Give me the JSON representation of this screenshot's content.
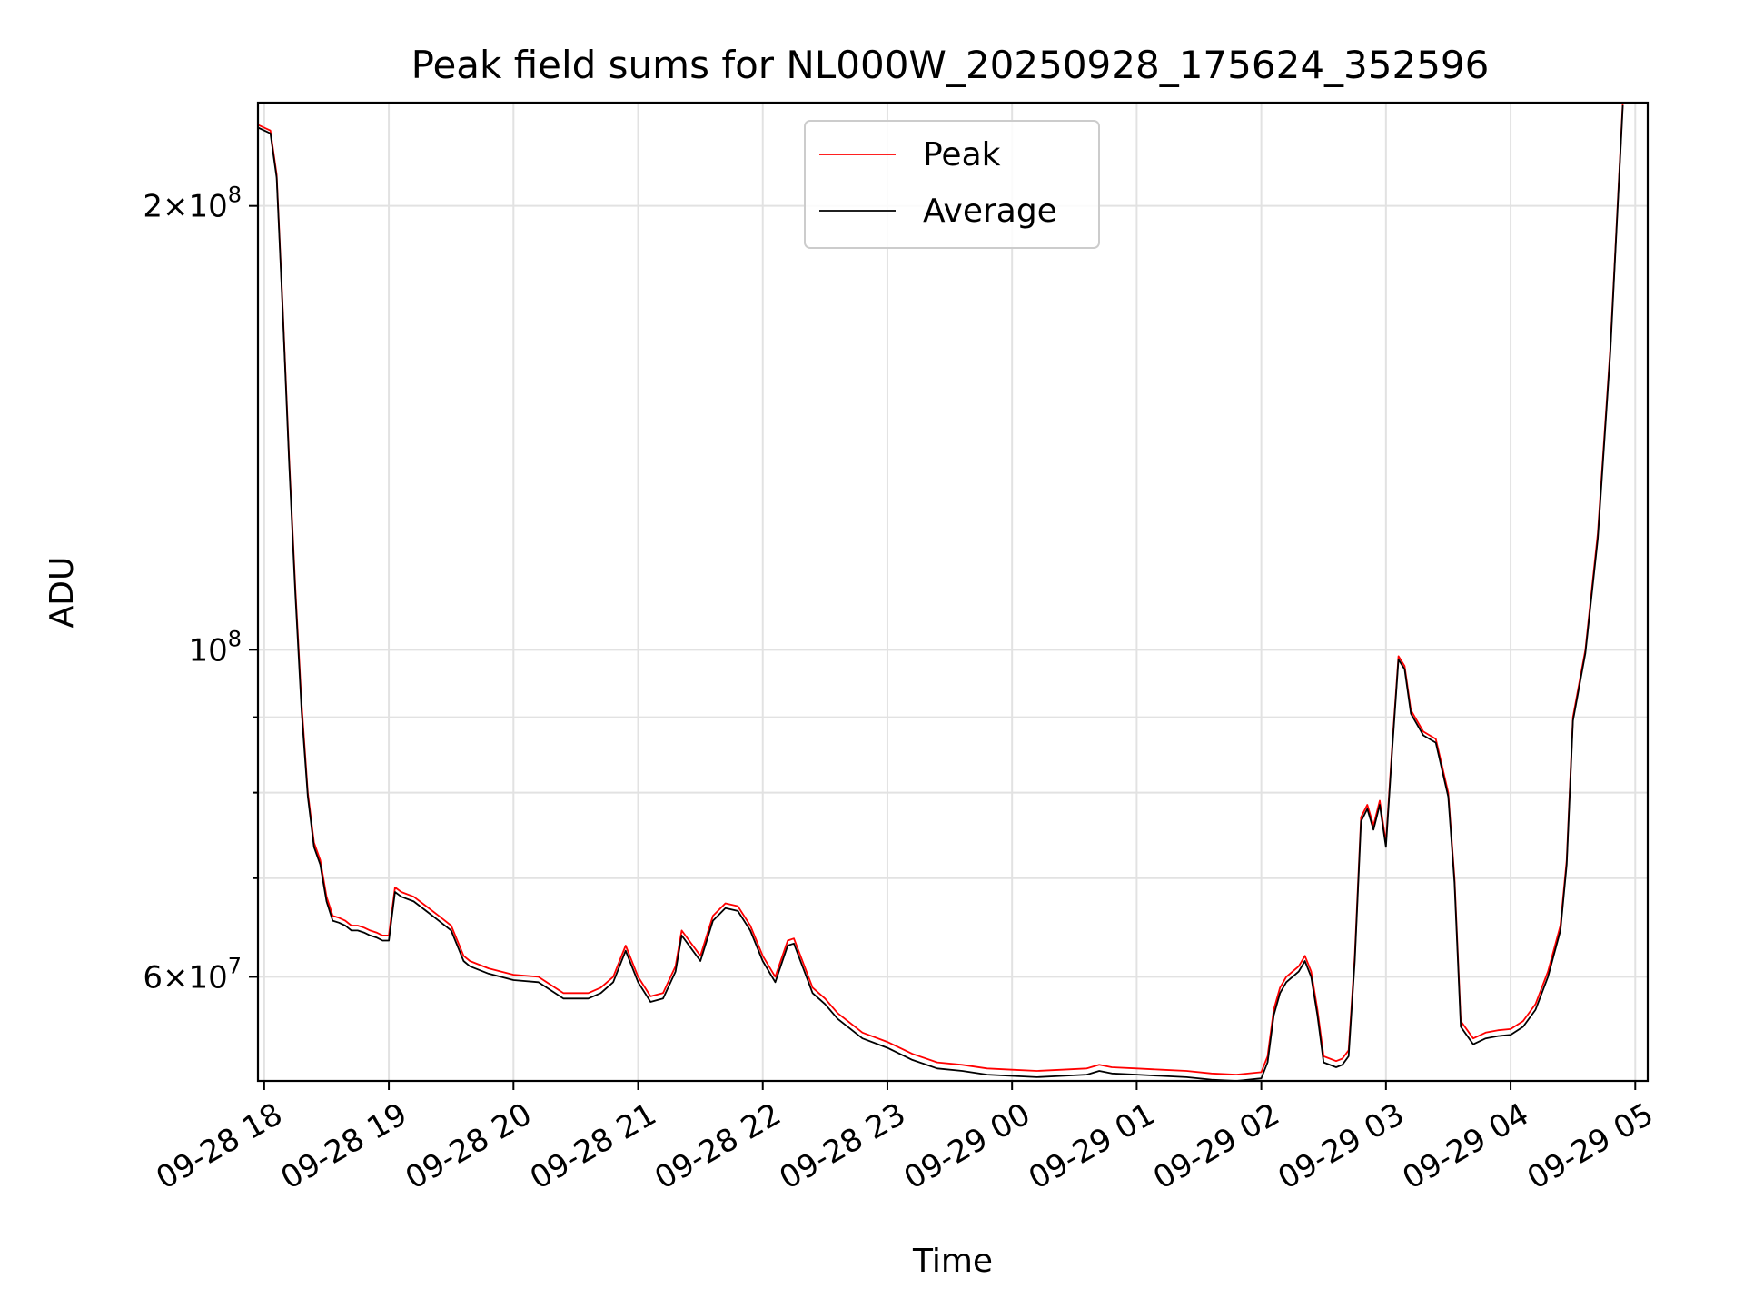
{
  "chart_data": {
    "type": "line",
    "title": "Peak field sums for NL000W_20250928_175624_352596",
    "xlabel": "Time",
    "ylabel": "ADU",
    "x_unit": "hours since 09-28 18:00",
    "xlim": [
      -0.05,
      11.1
    ],
    "ylim": [
      51000000,
      235000000
    ],
    "yscale": "log",
    "grid": true,
    "legend_location": "upper center",
    "x_ticks": [
      {
        "value": 0,
        "label": "09-28 18"
      },
      {
        "value": 1,
        "label": "09-28 19"
      },
      {
        "value": 2,
        "label": "09-28 20"
      },
      {
        "value": 3,
        "label": "09-28 21"
      },
      {
        "value": 4,
        "label": "09-28 22"
      },
      {
        "value": 5,
        "label": "09-28 23"
      },
      {
        "value": 6,
        "label": "09-29 00"
      },
      {
        "value": 7,
        "label": "09-29 01"
      },
      {
        "value": 8,
        "label": "09-29 02"
      },
      {
        "value": 9,
        "label": "09-29 03"
      },
      {
        "value": 10,
        "label": "09-29 04"
      },
      {
        "value": 11,
        "label": "09-29 05"
      }
    ],
    "y_ticks_major": [
      {
        "value": 60000000,
        "mantissa": "6",
        "exponent": "7"
      },
      {
        "value": 100000000,
        "mantissa": "",
        "exponent": "8"
      },
      {
        "value": 200000000,
        "mantissa": "2",
        "exponent": "8"
      }
    ],
    "y_ticks_minor": [
      70000000,
      80000000,
      90000000
    ],
    "tick_times": "×",
    "tick_base": "10",
    "series": [
      {
        "name": "Peak",
        "color": "#ff0000",
        "x": [
          -0.05,
          0.05,
          0.1,
          0.15,
          0.2,
          0.25,
          0.3,
          0.35,
          0.4,
          0.45,
          0.5,
          0.55,
          0.6,
          0.65,
          0.7,
          0.75,
          0.8,
          0.85,
          0.9,
          0.95,
          1.0,
          1.05,
          1.1,
          1.2,
          1.3,
          1.4,
          1.5,
          1.6,
          1.65,
          1.8,
          2.0,
          2.2,
          2.4,
          2.6,
          2.7,
          2.8,
          2.9,
          3.0,
          3.1,
          3.2,
          3.3,
          3.35,
          3.5,
          3.6,
          3.7,
          3.8,
          3.9,
          4.0,
          4.1,
          4.2,
          4.25,
          4.4,
          4.5,
          4.6,
          4.8,
          5.0,
          5.2,
          5.4,
          5.6,
          5.8,
          6.0,
          6.2,
          6.4,
          6.6,
          6.7,
          6.8,
          7.0,
          7.2,
          7.4,
          7.6,
          7.8,
          8.0,
          8.05,
          8.1,
          8.15,
          8.2,
          8.3,
          8.35,
          8.4,
          8.45,
          8.5,
          8.6,
          8.65,
          8.7,
          8.75,
          8.8,
          8.85,
          8.9,
          8.95,
          9.0,
          9.05,
          9.1,
          9.15,
          9.2,
          9.3,
          9.4,
          9.5,
          9.55,
          9.6,
          9.7,
          9.8,
          9.9,
          10.0,
          10.1,
          10.2,
          10.3,
          10.4,
          10.45,
          10.5,
          10.6,
          10.7,
          10.8,
          10.9
        ],
        "values": [
          227000000,
          225000000,
          210000000,
          170000000,
          135000000,
          110000000,
          92000000,
          80000000,
          74000000,
          72000000,
          68000000,
          66000000,
          65800000,
          65500000,
          65000000,
          65000000,
          64800000,
          64500000,
          64300000,
          64000000,
          64000000,
          69000000,
          68500000,
          68000000,
          67000000,
          66000000,
          65000000,
          62000000,
          61500000,
          60800000,
          60200000,
          60000000,
          58500000,
          58500000,
          59000000,
          60000000,
          63000000,
          60000000,
          58200000,
          58500000,
          61000000,
          64500000,
          62000000,
          66000000,
          67300000,
          67000000,
          65000000,
          62000000,
          60000000,
          63500000,
          63700000,
          59000000,
          58000000,
          56700000,
          55000000,
          54200000,
          53200000,
          52500000,
          52300000,
          52000000,
          51900000,
          51800000,
          51900000,
          52000000,
          52300000,
          52100000,
          52000000,
          51900000,
          51800000,
          51600000,
          51500000,
          51700000,
          53000000,
          57000000,
          59000000,
          60000000,
          61000000,
          62000000,
          60500000,
          57000000,
          53000000,
          52600000,
          52800000,
          53500000,
          62000000,
          77000000,
          78500000,
          76000000,
          79000000,
          74000000,
          86000000,
          99000000,
          97500000,
          91000000,
          88000000,
          87000000,
          80000000,
          70000000,
          56000000,
          54500000,
          55000000,
          55200000,
          55300000,
          56000000,
          57500000,
          60500000,
          65000000,
          72000000,
          90000000,
          100000000,
          120000000,
          160000000,
          235000000
        ]
      },
      {
        "name": "Average",
        "color": "#000000",
        "x": [
          -0.05,
          0.05,
          0.1,
          0.15,
          0.2,
          0.25,
          0.3,
          0.35,
          0.4,
          0.45,
          0.5,
          0.55,
          0.6,
          0.65,
          0.7,
          0.75,
          0.8,
          0.85,
          0.9,
          0.95,
          1.0,
          1.05,
          1.1,
          1.2,
          1.3,
          1.4,
          1.5,
          1.6,
          1.65,
          1.8,
          2.0,
          2.2,
          2.4,
          2.6,
          2.7,
          2.8,
          2.9,
          3.0,
          3.1,
          3.2,
          3.3,
          3.35,
          3.5,
          3.6,
          3.7,
          3.8,
          3.9,
          4.0,
          4.1,
          4.2,
          4.25,
          4.4,
          4.5,
          4.6,
          4.8,
          5.0,
          5.2,
          5.4,
          5.6,
          5.8,
          6.0,
          6.2,
          6.4,
          6.6,
          6.7,
          6.8,
          7.0,
          7.2,
          7.4,
          7.6,
          7.8,
          8.0,
          8.05,
          8.1,
          8.15,
          8.2,
          8.3,
          8.35,
          8.4,
          8.45,
          8.5,
          8.6,
          8.65,
          8.7,
          8.75,
          8.8,
          8.85,
          8.9,
          8.95,
          9.0,
          9.05,
          9.1,
          9.15,
          9.2,
          9.3,
          9.4,
          9.5,
          9.55,
          9.6,
          9.7,
          9.8,
          9.9,
          10.0,
          10.1,
          10.2,
          10.3,
          10.4,
          10.45,
          10.5,
          10.6,
          10.7,
          10.8,
          10.9
        ],
        "values": [
          226000000,
          224000000,
          209000000,
          169000000,
          134000000,
          109000000,
          91000000,
          79500000,
          73500000,
          71500000,
          67500000,
          65500000,
          65300000,
          65000000,
          64500000,
          64500000,
          64300000,
          64000000,
          63800000,
          63500000,
          63500000,
          68500000,
          68000000,
          67500000,
          66500000,
          65500000,
          64500000,
          61500000,
          61000000,
          60300000,
          59700000,
          59500000,
          58000000,
          58000000,
          58500000,
          59500000,
          62500000,
          59500000,
          57700000,
          58000000,
          60500000,
          64000000,
          61500000,
          65500000,
          66800000,
          66500000,
          64500000,
          61500000,
          59500000,
          63000000,
          63200000,
          58500000,
          57500000,
          56200000,
          54500000,
          53700000,
          52700000,
          52000000,
          51800000,
          51500000,
          51400000,
          51300000,
          51400000,
          51500000,
          51800000,
          51600000,
          51500000,
          51400000,
          51300000,
          51100000,
          51000000,
          51200000,
          52500000,
          56500000,
          58500000,
          59500000,
          60500000,
          61500000,
          60000000,
          56500000,
          52500000,
          52100000,
          52300000,
          53000000,
          61500000,
          76500000,
          78000000,
          75500000,
          78500000,
          73500000,
          85500000,
          98500000,
          97000000,
          90500000,
          87500000,
          86500000,
          79500000,
          69500000,
          55500000,
          54000000,
          54500000,
          54700000,
          54800000,
          55500000,
          57000000,
          60000000,
          64500000,
          71500000,
          89500000,
          99500000,
          119000000,
          159000000,
          234000000
        ]
      }
    ]
  }
}
